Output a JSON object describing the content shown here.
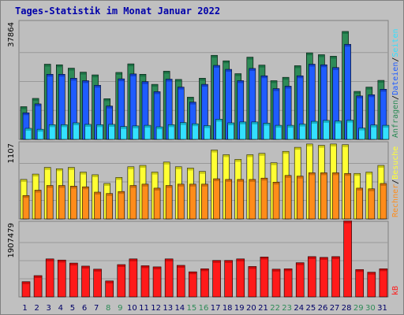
{
  "title": "Tages-Statistik im Monat Januar 2022",
  "colors": {
    "background": "#c0c0c0",
    "panel": "#bebebe",
    "grid": "#999999",
    "title": "#0000aa",
    "weekday_label": "#006600",
    "weekend_label": "#2e8b57",
    "hits_face": "#2e8b57",
    "hits_dark": "#0f5a34",
    "files_face": "#1f5cff",
    "files_dark": "#0a2a99",
    "pages_face": "#33e0ff",
    "pages_dark": "#008899",
    "visits_face": "#ffff33",
    "visits_dark": "#999900",
    "sites_face": "#ff8c1a",
    "sites_dark": "#a35400",
    "kb_face": "#ff1a1a",
    "kb_dark": "#990000"
  },
  "chart_data": [
    {
      "type": "bar",
      "panel": "top",
      "ymax_label": "37864",
      "ylim": [
        0,
        37864
      ],
      "grid": true,
      "right_labels": [
        {
          "text": "Anfragen",
          "color": "#2e8b57"
        },
        {
          "text": "/",
          "color": "#000000"
        },
        {
          "text": "Dateien",
          "color": "#1f5cff"
        },
        {
          "text": "/",
          "color": "#000000"
        },
        {
          "text": "Seiten",
          "color": "#33e0ff"
        }
      ],
      "categories": [
        "1",
        "2",
        "3",
        "4",
        "5",
        "6",
        "7",
        "8",
        "9",
        "10",
        "11",
        "12",
        "13",
        "14",
        "15",
        "16",
        "17",
        "18",
        "19",
        "20",
        "21",
        "22",
        "23",
        "24",
        "25",
        "26",
        "27",
        "28",
        "29",
        "30",
        "31"
      ],
      "series": [
        {
          "name": "Anfragen",
          "color": "#2e8b57",
          "values": [
            10700,
            13400,
            24600,
            24400,
            23300,
            22000,
            21100,
            13300,
            21900,
            24700,
            21300,
            18000,
            22300,
            19600,
            13800,
            20000,
            27500,
            25700,
            21500,
            26900,
            24300,
            19200,
            20300,
            24100,
            28300,
            27700,
            27200,
            35300,
            15700,
            17100,
            19300
          ]
        },
        {
          "name": "Dateien",
          "color": "#1f5cff",
          "values": [
            8700,
            11600,
            21300,
            21300,
            20000,
            19200,
            17700,
            10900,
            19800,
            21400,
            18900,
            15600,
            19700,
            17100,
            12200,
            18000,
            24200,
            22900,
            19200,
            23200,
            20800,
            16600,
            17400,
            20800,
            24600,
            24400,
            23500,
            31100,
            14200,
            14600,
            16400
          ]
        },
        {
          "name": "Seiten",
          "color": "#33e0ff",
          "values": [
            3600,
            3300,
            4800,
            4800,
            5400,
            4900,
            4800,
            4900,
            4200,
            4400,
            4600,
            4100,
            4800,
            5500,
            5100,
            4500,
            6600,
            5400,
            5700,
            5700,
            5300,
            4600,
            4600,
            5000,
            5900,
            6200,
            6000,
            6300,
            3700,
            4700,
            4600
          ]
        }
      ]
    },
    {
      "type": "bar",
      "panel": "middle",
      "ymax_label": "1107",
      "ylim": [
        0,
        1107
      ],
      "grid": true,
      "right_labels": [
        {
          "text": "Rechner",
          "color": "#ff8c1a"
        },
        {
          "text": "/",
          "color": "#000000"
        },
        {
          "text": "Besuche",
          "color": "#ffff33"
        }
      ],
      "categories": [
        "1",
        "2",
        "3",
        "4",
        "5",
        "6",
        "7",
        "8",
        "9",
        "10",
        "11",
        "12",
        "13",
        "14",
        "15",
        "16",
        "17",
        "18",
        "19",
        "20",
        "21",
        "22",
        "23",
        "24",
        "25",
        "26",
        "27",
        "28",
        "29",
        "30",
        "31"
      ],
      "series": [
        {
          "name": "Besuche",
          "color": "#ffff33",
          "values": [
            590,
            670,
            770,
            750,
            770,
            700,
            660,
            530,
            620,
            780,
            800,
            700,
            850,
            780,
            760,
            710,
            1030,
            960,
            890,
            960,
            980,
            840,
            1010,
            1070,
            1120,
            1100,
            1120,
            1110,
            680,
            700,
            800
          ]
        },
        {
          "name": "Rechner",
          "color": "#ff8c1a",
          "values": [
            350,
            430,
            500,
            500,
            490,
            480,
            400,
            380,
            410,
            500,
            520,
            460,
            500,
            520,
            520,
            520,
            600,
            590,
            590,
            590,
            610,
            550,
            650,
            640,
            690,
            690,
            690,
            680,
            460,
            450,
            530
          ]
        }
      ]
    },
    {
      "type": "bar",
      "panel": "bottom",
      "ymax_label": "1907479",
      "ylim": [
        0,
        1907479
      ],
      "grid": true,
      "right_labels": [
        {
          "text": "kB",
          "color": "#ff1a1a"
        }
      ],
      "categories": [
        "1",
        "2",
        "3",
        "4",
        "5",
        "6",
        "7",
        "8",
        "9",
        "10",
        "11",
        "12",
        "13",
        "14",
        "15",
        "16",
        "17",
        "18",
        "19",
        "20",
        "21",
        "22",
        "23",
        "24",
        "25",
        "26",
        "27",
        "28",
        "29",
        "30",
        "31"
      ],
      "series": [
        {
          "name": "kB",
          "color": "#ff1a1a",
          "values": [
            400000,
            560000,
            1000000,
            970000,
            890000,
            810000,
            730000,
            420000,
            850000,
            1000000,
            820000,
            790000,
            1000000,
            830000,
            660000,
            740000,
            960000,
            960000,
            1000000,
            800000,
            1050000,
            730000,
            740000,
            900000,
            1060000,
            1040000,
            1060000,
            2000000,
            720000,
            650000,
            740000
          ]
        }
      ]
    }
  ],
  "weekend_days": [
    "8",
    "9",
    "15",
    "16",
    "22",
    "23",
    "29",
    "30"
  ]
}
